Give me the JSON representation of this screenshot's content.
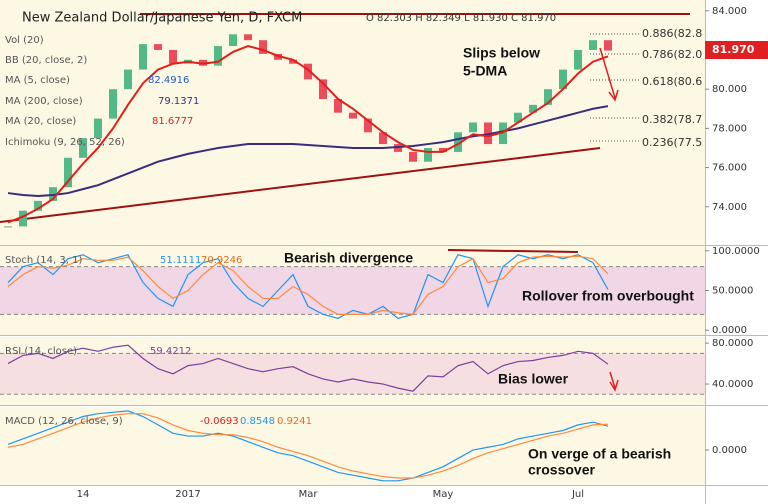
{
  "chart_data": [
    {
      "type": "candlestick",
      "title": "New Zealand Dollar/Japanese Yen, D, FXCM",
      "ohlc": "O 82.303 H 82.349 L 81.930 C 81.970",
      "values": [
        73.0,
        73.8,
        74.3,
        75.0,
        76.5,
        77.5,
        78.5,
        80.0,
        81.0,
        82.3,
        82.0,
        81.3,
        81.5,
        81.2,
        82.2,
        82.8,
        82.5,
        81.8,
        81.5,
        81.3,
        80.5,
        79.5,
        78.8,
        78.5,
        77.8,
        77.2,
        76.8,
        76.3,
        77.0,
        76.8,
        77.8,
        78.3,
        77.2,
        78.3,
        78.8,
        79.2,
        80.0,
        81.0,
        82.0,
        82.5,
        81.97
      ],
      "color_up": "#53b987",
      "color_down": "#eb4d5c",
      "series": [
        {
          "name": "MA (200, close)",
          "color": "#3b2c7e",
          "values": [
            74.7,
            74.6,
            74.55,
            74.6,
            74.7,
            74.9,
            75.1,
            75.4,
            75.7,
            76.0,
            76.3,
            76.5,
            76.7,
            76.85,
            77.0,
            77.1,
            77.2,
            77.2,
            77.2,
            77.2,
            77.15,
            77.1,
            77.05,
            77.0,
            77.0,
            77.0,
            77.05,
            77.1,
            77.2,
            77.3,
            77.45,
            77.6,
            77.7,
            77.85,
            78.0,
            78.2,
            78.4,
            78.6,
            78.8,
            79.0,
            79.1371
          ]
        },
        {
          "name": "MA (20, close)",
          "color": "#e0201b",
          "values": [
            73.2,
            73.5,
            73.9,
            74.4,
            75.3,
            76.2,
            77.0,
            78.0,
            79.2,
            80.3,
            81.0,
            81.3,
            81.4,
            81.3,
            81.4,
            81.9,
            82.2,
            82.0,
            81.7,
            81.5,
            81.0,
            80.3,
            79.5,
            79.0,
            78.4,
            77.8,
            77.3,
            76.9,
            76.8,
            76.8,
            77.2,
            77.7,
            77.6,
            77.8,
            78.3,
            78.8,
            79.3,
            80.0,
            80.8,
            81.4,
            81.6777
          ]
        }
      ],
      "indicators": [
        {
          "label": "Vol (20)"
        },
        {
          "label": "BB (20, close, 2)"
        },
        {
          "label": "MA (5, close)",
          "value": 82.4916
        },
        {
          "label": "Ichimoku (9, 26, 52, 26)"
        }
      ],
      "fib_labels": [
        "0.886(82.8",
        "0.786(82.0",
        "0.618(80.6",
        "0.382(78.7",
        "0.236(77.5"
      ],
      "annotations": [
        "Slips below",
        "5-DMA"
      ],
      "last_price_label": "81.970",
      "ylim": [
        72.05,
        84.55
      ],
      "yticks": [
        {
          "value": 84,
          "label": "84.000"
        },
        {
          "value": 82,
          "label": "82.000"
        },
        {
          "value": 80,
          "label": "80.000"
        },
        {
          "value": 78,
          "label": "78.000"
        },
        {
          "value": 76,
          "label": "76.000"
        },
        {
          "value": 74,
          "label": "74.000"
        }
      ]
    },
    {
      "type": "line",
      "title": "Stoch (14, 3, 1)",
      "annotations": [
        "Bearish divergence",
        "Rollover from overbought"
      ],
      "series": [
        {
          "color": "#2196f3",
          "values": [
            60,
            80,
            85,
            70,
            90,
            95,
            85,
            90,
            95,
            60,
            40,
            30,
            70,
            85,
            90,
            60,
            40,
            30,
            50,
            70,
            30,
            20,
            15,
            25,
            20,
            30,
            15,
            20,
            70,
            60,
            95,
            90,
            30,
            80,
            95,
            90,
            95,
            90,
            95,
            85,
            51.1111
          ]
        },
        {
          "color": "#ff8a3d",
          "values": [
            55,
            70,
            80,
            78,
            82,
            90,
            88,
            88,
            92,
            75,
            55,
            40,
            50,
            70,
            85,
            75,
            55,
            40,
            40,
            55,
            45,
            30,
            20,
            20,
            20,
            25,
            22,
            20,
            45,
            55,
            80,
            90,
            60,
            65,
            85,
            92,
            93,
            92,
            93,
            90,
            70.9246
          ]
        }
      ],
      "band": [
        20,
        80
      ],
      "ylim": [
        -6,
        106
      ],
      "yticks": [
        {
          "value": 100,
          "label": "100.0000"
        },
        {
          "value": 50,
          "label": "50.0000"
        },
        {
          "value": 0,
          "label": "0.0000"
        }
      ]
    },
    {
      "type": "line",
      "title": "RSI (14, close)",
      "annotations": [
        "Bias lower"
      ],
      "series": [
        {
          "color": "#7b3fa0",
          "values": [
            60,
            68,
            70,
            65,
            72,
            75,
            72,
            76,
            78,
            65,
            55,
            50,
            58,
            60,
            65,
            60,
            55,
            52,
            55,
            57,
            50,
            45,
            42,
            45,
            42,
            40,
            36,
            33,
            48,
            47,
            58,
            62,
            50,
            58,
            62,
            63,
            66,
            68,
            72,
            70,
            59.4212
          ]
        }
      ],
      "band": [
        30,
        70
      ],
      "ylim": [
        19.5,
        86
      ],
      "yticks": [
        {
          "value": 80,
          "label": "80.0000"
        },
        {
          "value": 40,
          "label": "40.0000"
        }
      ]
    },
    {
      "type": "line",
      "title": "MACD (12, 26, close, 9)",
      "histogram_last": -0.0693,
      "annotations": [
        "On verge of a bearish",
        "crossover"
      ],
      "series": [
        {
          "color": "#2196f3",
          "values": [
            0.2,
            0.4,
            0.6,
            0.8,
            1.0,
            1.2,
            1.3,
            1.35,
            1.4,
            1.2,
            0.9,
            0.6,
            0.5,
            0.5,
            0.6,
            0.5,
            0.3,
            0.1,
            -0.1,
            -0.2,
            -0.4,
            -0.6,
            -0.8,
            -0.9,
            -1.0,
            -1.1,
            -1.1,
            -1.0,
            -0.8,
            -0.6,
            -0.3,
            0.0,
            0.1,
            0.2,
            0.4,
            0.5,
            0.6,
            0.7,
            0.9,
            1.0,
            0.8548
          ]
        },
        {
          "color": "#ff8a3d",
          "values": [
            0.1,
            0.2,
            0.4,
            0.6,
            0.8,
            1.0,
            1.15,
            1.25,
            1.3,
            1.3,
            1.15,
            0.9,
            0.7,
            0.6,
            0.55,
            0.55,
            0.45,
            0.3,
            0.1,
            -0.05,
            -0.2,
            -0.4,
            -0.6,
            -0.75,
            -0.85,
            -0.95,
            -1.0,
            -1.0,
            -0.9,
            -0.75,
            -0.55,
            -0.3,
            -0.1,
            0.05,
            0.2,
            0.35,
            0.5,
            0.6,
            0.75,
            0.9,
            0.9241
          ]
        }
      ],
      "categories": [
        null,
        null,
        null,
        null,
        null,
        "14",
        null,
        null,
        null,
        null,
        null,
        null,
        "2017",
        null,
        null,
        null,
        null,
        null,
        null,
        null,
        "Mar",
        null,
        null,
        null,
        null,
        null,
        null,
        null,
        null,
        "May",
        null,
        null,
        null,
        null,
        null,
        null,
        null,
        null,
        "Jul",
        null,
        null
      ],
      "ylim": [
        -1.25,
        1.54
      ],
      "yticks": [
        {
          "value": 0,
          "label": "0.0000"
        }
      ]
    }
  ]
}
